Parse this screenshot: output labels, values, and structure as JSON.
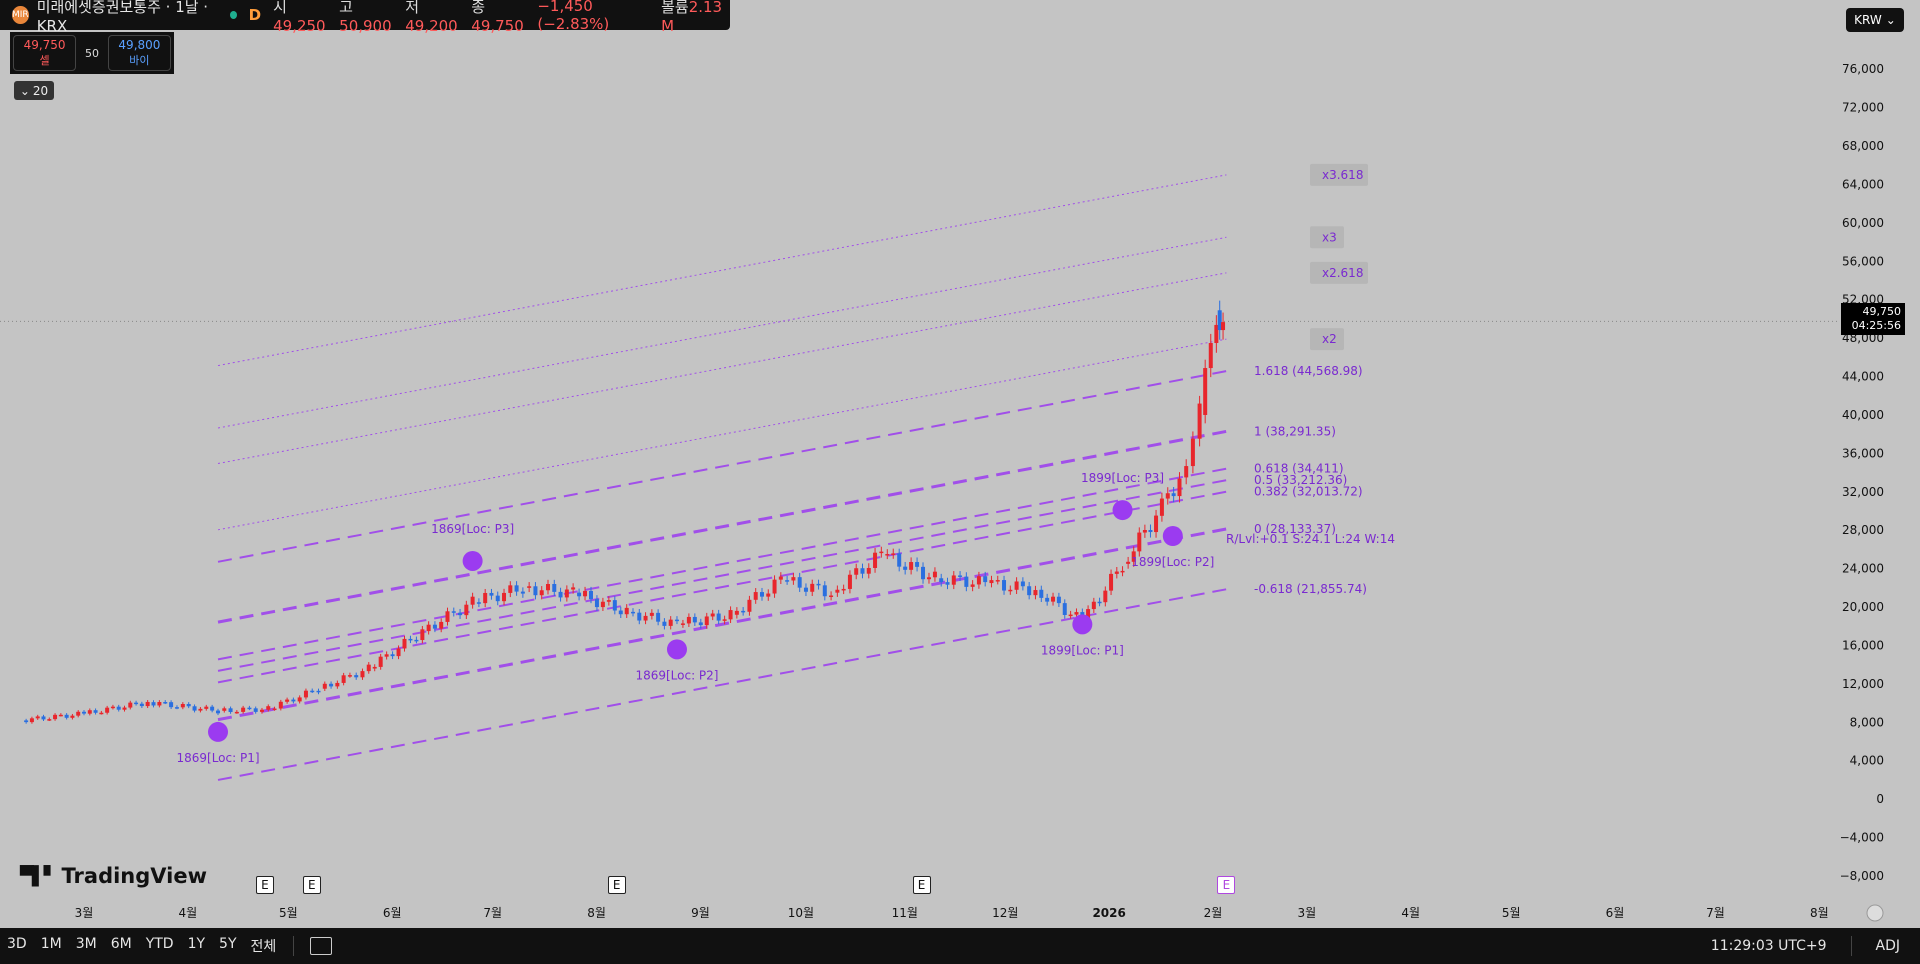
{
  "header": {
    "logo_text": "MIR",
    "symbol": "미래에셋증권보통주 · 1날 · KRX",
    "resolution": "D",
    "open_label": "시",
    "open": "49,250",
    "high_label": "고",
    "high": "50,900",
    "low_label": "저",
    "low": "49,200",
    "close_label": "종",
    "close": "49,750",
    "change": "−1,450 (−2.83%)",
    "volume_label": "볼륨",
    "volume": "2.13 M"
  },
  "trade": {
    "sell_price": "49,750",
    "sell_label": "셀",
    "spread": "50",
    "buy_price": "49,800",
    "buy_label": "바이"
  },
  "indicator_toggle": {
    "icon": "chevron-down-icon",
    "label": "20"
  },
  "currency": "KRW",
  "last_price": {
    "price": "49,750",
    "countdown": "04:25:56"
  },
  "tradingview_logo": "TradingView",
  "earnings_marker_label": "E",
  "bottom": {
    "timeframes": [
      "3D",
      "1M",
      "3M",
      "6M",
      "YTD",
      "1Y",
      "5Y",
      "전체"
    ],
    "time": "11:29:03 UTC+9",
    "adj": "ADJ"
  },
  "colors": {
    "up": "#e8262c",
    "down": "#2a6fe0",
    "pattern": "#9b3bf0",
    "background": "#c4c4c4"
  },
  "chart_data": {
    "type": "candlestick",
    "symbol": "미래에셋증권보통주",
    "ylim": [
      -8000,
      78000
    ],
    "y_ticks": [
      76000,
      72000,
      68000,
      64000,
      60000,
      56000,
      52000,
      48000,
      44000,
      40000,
      36000,
      32000,
      28000,
      24000,
      20000,
      16000,
      12000,
      8000,
      4000,
      0,
      -4000,
      -8000
    ],
    "y_tick_labels": [
      "76,000",
      "72,000",
      "68,000",
      "64,000",
      "60,000",
      "56,000",
      "52,000",
      "48,000",
      "44,000",
      "40,000",
      "36,000",
      "32,000",
      "28,000",
      "24,000",
      "20,000",
      "16,000",
      "12,000",
      "8,000",
      "4,000",
      "0",
      "−4,000",
      "−8,000"
    ],
    "x_ticks": [
      {
        "date": "2025-03-01",
        "label": "3월"
      },
      {
        "date": "2025-04-01",
        "label": "4월"
      },
      {
        "date": "2025-05-01",
        "label": "5월"
      },
      {
        "date": "2025-06-01",
        "label": "6월"
      },
      {
        "date": "2025-07-01",
        "label": "7월"
      },
      {
        "date": "2025-08-01",
        "label": "8월"
      },
      {
        "date": "2025-09-01",
        "label": "9월"
      },
      {
        "date": "2025-10-01",
        "label": "10월"
      },
      {
        "date": "2025-11-01",
        "label": "11월"
      },
      {
        "date": "2025-12-01",
        "label": "12월"
      },
      {
        "date": "2026-01-01",
        "label": "2026"
      },
      {
        "date": "2026-02-01",
        "label": "2월"
      },
      {
        "date": "2026-03-01",
        "label": "3월"
      },
      {
        "date": "2026-04-01",
        "label": "4월"
      },
      {
        "date": "2026-05-01",
        "label": "5월"
      },
      {
        "date": "2026-06-01",
        "label": "6월"
      },
      {
        "date": "2026-07-01",
        "label": "7월"
      },
      {
        "date": "2026-08-01",
        "label": "8월"
      }
    ],
    "earnings_dates": [
      "2025-04-24",
      "2025-05-08",
      "2025-08-07",
      "2025-11-06",
      "2026-02-05"
    ],
    "closes": [
      {
        "date": "2025-02-10",
        "close": 8200
      },
      {
        "date": "2025-03-01",
        "close": 8900
      },
      {
        "date": "2025-03-20",
        "close": 10100
      },
      {
        "date": "2025-04-10",
        "close": 9200
      },
      {
        "date": "2025-04-25",
        "close": 9400
      },
      {
        "date": "2025-05-10",
        "close": 11500
      },
      {
        "date": "2025-05-25",
        "close": 13600
      },
      {
        "date": "2025-06-10",
        "close": 17500
      },
      {
        "date": "2025-06-25",
        "close": 20500
      },
      {
        "date": "2025-07-10",
        "close": 22000
      },
      {
        "date": "2025-07-25",
        "close": 21500
      },
      {
        "date": "2025-08-10",
        "close": 19500
      },
      {
        "date": "2025-08-25",
        "close": 18200
      },
      {
        "date": "2025-09-10",
        "close": 19200
      },
      {
        "date": "2025-09-25",
        "close": 22800
      },
      {
        "date": "2025-10-10",
        "close": 21500
      },
      {
        "date": "2025-10-25",
        "close": 25500
      },
      {
        "date": "2025-11-10",
        "close": 23000
      },
      {
        "date": "2025-11-25",
        "close": 22500
      },
      {
        "date": "2025-12-10",
        "close": 21800
      },
      {
        "date": "2025-12-24",
        "close": 18500
      },
      {
        "date": "2026-01-05",
        "close": 24500
      },
      {
        "date": "2026-01-15",
        "close": 29500
      },
      {
        "date": "2026-01-22",
        "close": 33500
      },
      {
        "date": "2026-01-28",
        "close": 40000
      },
      {
        "date": "2026-02-02",
        "close": 50900
      },
      {
        "date": "2026-02-04",
        "close": 49750
      }
    ],
    "points": [
      {
        "label": "1869[Loc: P1]",
        "date": "2025-04-10",
        "value": 7000
      },
      {
        "label": "1869[Loc: P2]",
        "date": "2025-08-25",
        "value": 15600
      },
      {
        "label": "1869[Loc: P3]",
        "date": "2025-06-25",
        "value": 24800
      },
      {
        "label": "1899[Loc: P1]",
        "date": "2025-12-24",
        "value": 18200
      },
      {
        "label": "1899[Loc: P2]",
        "date": "2026-01-20",
        "value": 27400
      },
      {
        "label": "1899[Loc: P3]",
        "date": "2026-01-05",
        "value": 30100
      }
    ],
    "levels": [
      {
        "label": "x3.618",
        "value": 65000
      },
      {
        "label": "x3",
        "value": 58500
      },
      {
        "label": "x2.618",
        "value": 54800
      },
      {
        "label": "x2",
        "value": 47900
      },
      {
        "label": "1.618 (44,568.98)",
        "value": 44568.98
      },
      {
        "label": "1 (38,291.35)",
        "value": 38291.35
      },
      {
        "label": "0.618 (34,411)",
        "value": 34411
      },
      {
        "label": "0.5 (33,212.36)",
        "value": 33212.36
      },
      {
        "label": "0.382 (32,013.72)",
        "value": 32013.72
      },
      {
        "label": "0 (28,133.37)",
        "value": 28133.37
      },
      {
        "label": "-0.618 (21,855.74)",
        "value": 21855.74
      }
    ],
    "level_note": "R/Lvl:+0.1 S:24.1 L:24 W:14"
  }
}
